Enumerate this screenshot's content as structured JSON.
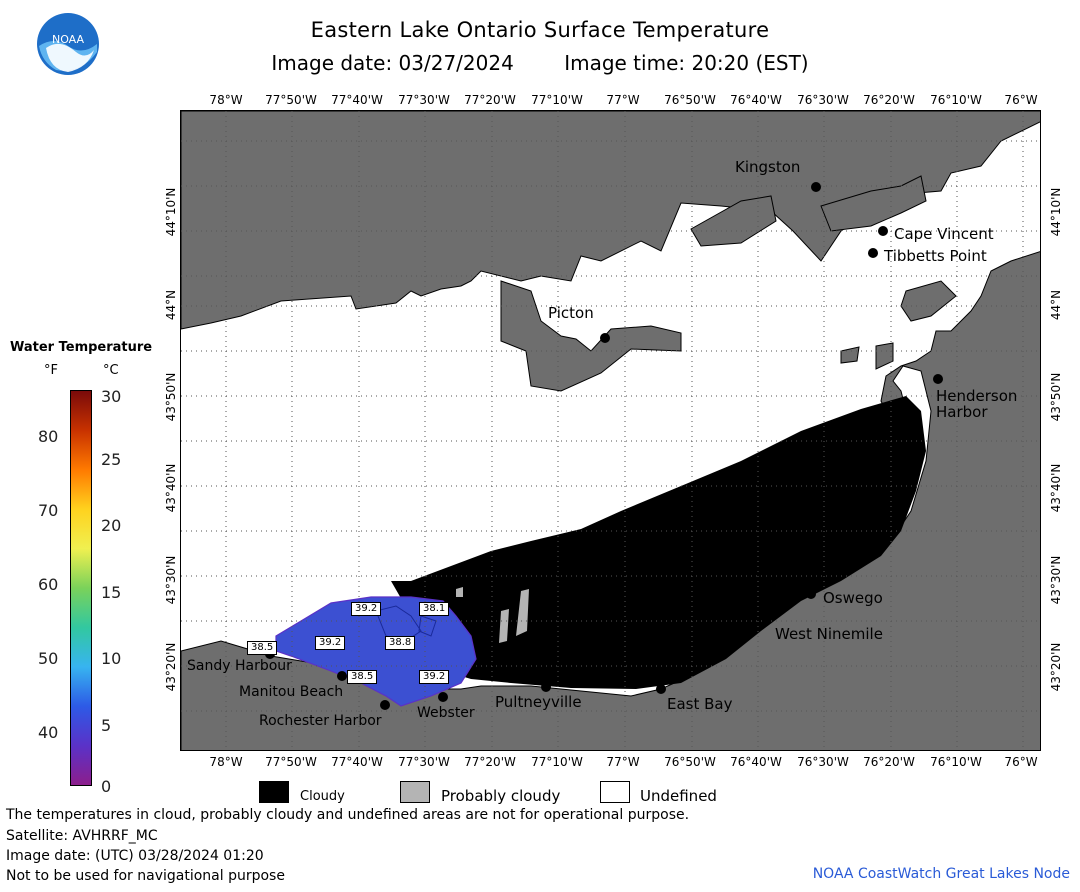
{
  "header": {
    "title": "Eastern Lake Ontario Surface Temperature",
    "image_date": "Image date: 03/27/2024",
    "image_time": "Image time: 20:20 (EST)"
  },
  "logo": {
    "text": "NOAA"
  },
  "longitude_labels": [
    "78°W",
    "77°50'W",
    "77°40'W",
    "77°30'W",
    "77°20'W",
    "77°10'W",
    "77°W",
    "76°50'W",
    "76°40'W",
    "76°30'W",
    "76°20'W",
    "76°10'W",
    "76°W"
  ],
  "latitude_labels": [
    "44°10'N",
    "44°N",
    "43°50'N",
    "43°40'N",
    "43°30'N",
    "43°20'N"
  ],
  "places": {
    "kingston": "Kingston",
    "cape_vincent": "Cape Vincent",
    "tibbetts_point": "Tibbetts Point",
    "picton": "Picton",
    "henderson_harbor_line1": "Henderson",
    "henderson_harbor_line2": "Harbor",
    "oswego": "Oswego",
    "west_ninemile": "West Ninemile",
    "sandy_harbour": "Sandy Harbour",
    "manitou_beach": "Manitou Beach",
    "rochester_harbor": "Rochester Harbor",
    "webster": "Webster",
    "pultneyville": "Pultneyville",
    "east_bay": "East Bay"
  },
  "temperature_labels": [
    "39.2",
    "38.1",
    "39.2",
    "38.8",
    "38.5",
    "38.5",
    "39.2"
  ],
  "legend": {
    "title": "Water Temperature",
    "unit_f": "°F",
    "unit_c": "°C",
    "fahrenheit_ticks": [
      "80",
      "70",
      "60",
      "50",
      "40"
    ],
    "celsius_ticks": [
      "30",
      "25",
      "20",
      "15",
      "10",
      "5",
      "0"
    ],
    "colors": [
      "#7a0a0a",
      "#c83200",
      "#ff7a00",
      "#ffd21e",
      "#f0f050",
      "#7ad25a",
      "#32c8a0",
      "#37b4f0",
      "#2d5ae6",
      "#5a32c8",
      "#8c1e8c"
    ]
  },
  "key": {
    "cloudy": "Cloudy",
    "probably_cloudy": "Probably cloudy",
    "undefined": "Undefined"
  },
  "footer": {
    "note": "The temperatures in cloud, probably cloudy and undefined areas are not for operational purpose.",
    "satellite": "Satellite: AVHRRF_MC",
    "utc_date": "Image date: (UTC) 03/28/2024  01:20",
    "nav_warning": "Not to be used for navigational purpose",
    "credit": "NOAA CoastWatch Great Lakes Node"
  },
  "colors": {
    "land": "#6e6e6e",
    "cloud": "#000000",
    "probably_cloudy": "#b4b4b4",
    "undefined": "#ffffff",
    "water_temp": "#3c50d2",
    "credit": "#2a5bd7"
  }
}
